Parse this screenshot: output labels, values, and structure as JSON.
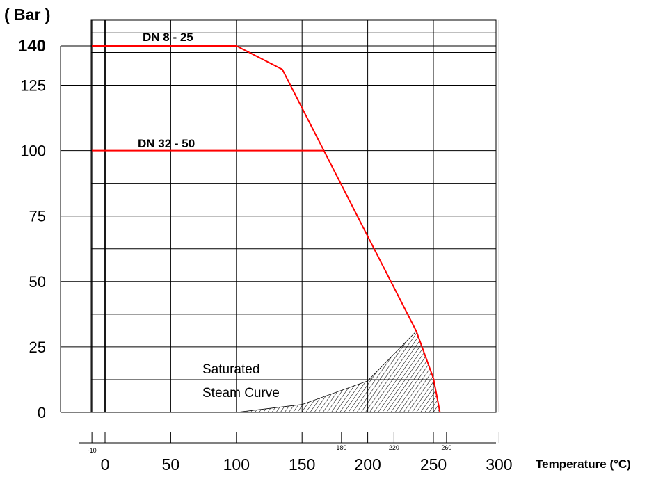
{
  "chart_data": {
    "type": "line",
    "title": "",
    "ylabel": "( Bar )",
    "xlabel": "Temperature (°C)",
    "xlim": [
      -10,
      300
    ],
    "ylim": [
      0,
      145
    ],
    "grid": true,
    "y_ticks": [
      "0",
      "25",
      "50",
      "75",
      "100",
      "125",
      "140"
    ],
    "y_tick_values": [
      0,
      25,
      50,
      75,
      100,
      125,
      140
    ],
    "x_ticks": [
      "0",
      "50",
      "100",
      "150",
      "200",
      "250",
      "300"
    ],
    "x_tick_values": [
      0,
      50,
      100,
      150,
      200,
      250,
      300
    ],
    "x_minor_ticks": [
      "-10",
      "180",
      "220",
      "260"
    ],
    "x_minor_tick_values": [
      -10,
      180,
      220,
      260
    ],
    "grid_x": [
      -10,
      0,
      50,
      100,
      150,
      200,
      250,
      300
    ],
    "grid_y": [
      0,
      12.5,
      25,
      37.5,
      50,
      62.5,
      75,
      87.5,
      100,
      112.5,
      125,
      137.5,
      140,
      145
    ],
    "series": [
      {
        "name": "DN 8 - 25",
        "color": "#ff0000",
        "x": [
          -10,
          100,
          135,
          237,
          250,
          255
        ],
        "y": [
          140,
          140,
          131,
          31,
          13,
          0
        ]
      },
      {
        "name": "DN 32 - 50",
        "color": "#ff0000",
        "x": [
          -10,
          166
        ],
        "y": [
          100,
          100
        ]
      }
    ],
    "saturated_steam_curve": {
      "label_line1": "Saturated",
      "label_line2": "Steam Curve",
      "x": [
        100,
        150,
        200,
        237,
        250,
        255
      ],
      "y": [
        0,
        3,
        12,
        31,
        13,
        0
      ]
    }
  }
}
